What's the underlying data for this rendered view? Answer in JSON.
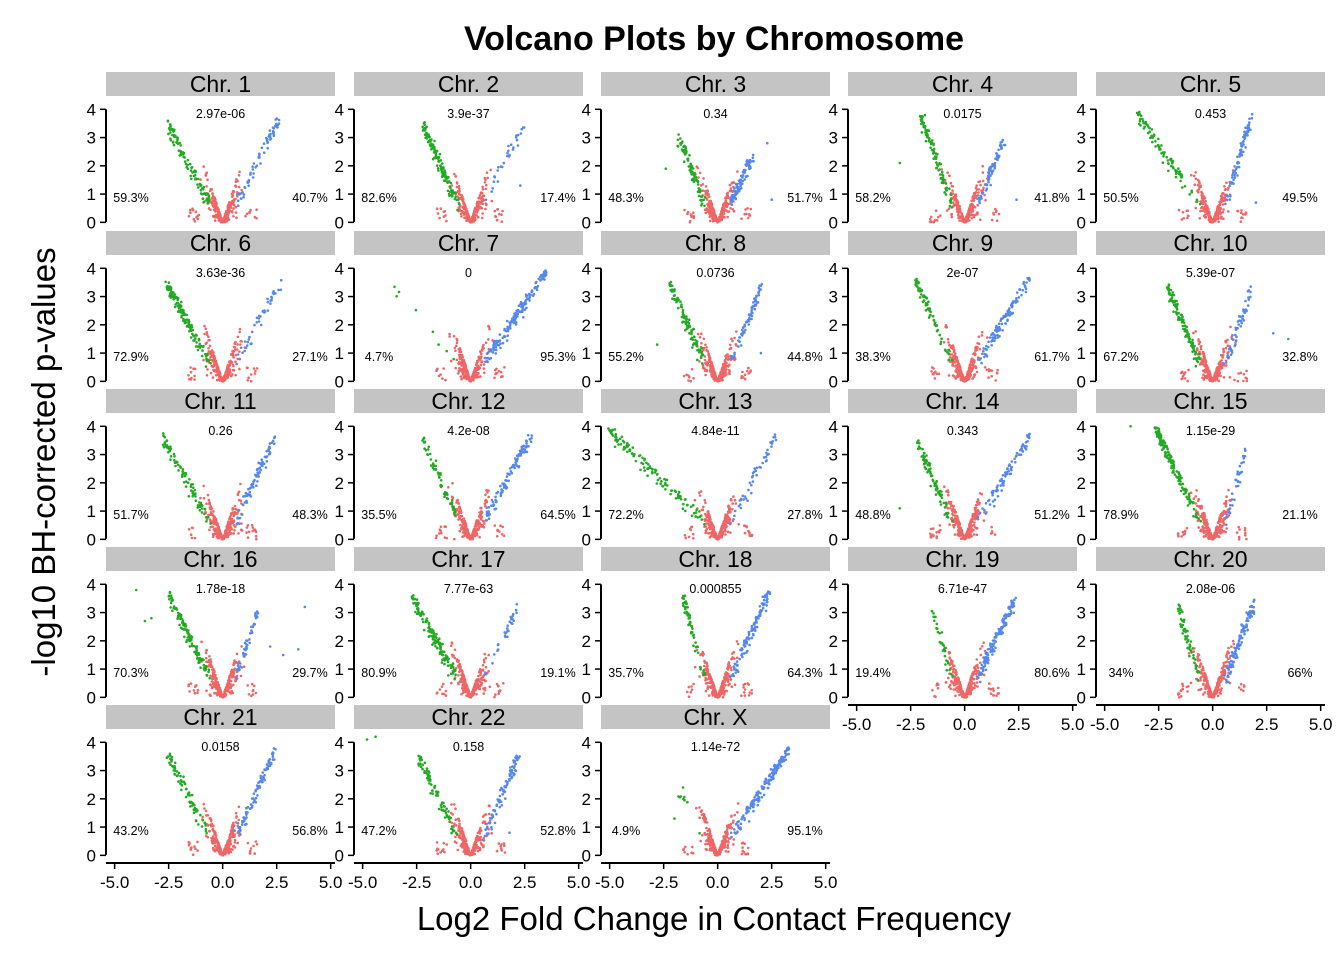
{
  "chart_data": {
    "type": "scatter",
    "title": "Volcano Plots by Chromosome",
    "xlabel": "Log2 Fold Change in Contact Frequency",
    "ylabel": "-log10 BH-corrected p-values",
    "xlim": [
      -5.4,
      5.2
    ],
    "ylim": [
      -0.2,
      4.4
    ],
    "x_ticks": [
      -5,
      -2.5,
      0,
      2.5,
      5
    ],
    "x_tick_labels": [
      "-5.0",
      "-2.5",
      "0.0",
      "2.5",
      "5.0"
    ],
    "y_ticks": [
      0,
      1,
      2,
      3,
      4
    ],
    "y_tick_labels": [
      "0",
      "1",
      "2",
      "3",
      "4"
    ],
    "grid": false,
    "legend": "none",
    "colors": {
      "down_significant": "#22aa22",
      "up_significant": "#5588ee",
      "not_significant": "#ee6666",
      "strip": "#c4c4c4"
    },
    "series": [
      {
        "color_key": "down_significant",
        "description": "negative fold change, significant"
      },
      {
        "color_key": "up_significant",
        "description": "positive fold change, significant"
      },
      {
        "color_key": "not_significant",
        "description": "not significant"
      }
    ],
    "facets": [
      {
        "label": "Chr. 1",
        "pvalue": "2.97e-06",
        "left_pct": "59.3%",
        "right_pct": "40.7%",
        "min_x": -2.6,
        "max_x": 2.6,
        "peak_left": 3.7,
        "peak_right": 3.8,
        "outliers_left": [],
        "outliers_right": []
      },
      {
        "label": "Chr. 2",
        "pvalue": "3.9e-37",
        "left_pct": "82.6%",
        "right_pct": "17.4%",
        "min_x": -2.2,
        "max_x": 2.5,
        "peak_left": 3.6,
        "peak_right": 3.7,
        "outliers_left": [],
        "outliers_right": [
          [
            2.3,
            1.3
          ]
        ]
      },
      {
        "label": "Chr. 3",
        "pvalue": "0.34",
        "left_pct": "48.3%",
        "right_pct": "51.7%",
        "min_x": -1.8,
        "max_x": 1.6,
        "peak_left": 3.2,
        "peak_right": 2.5,
        "outliers_left": [
          [
            -2.4,
            1.9
          ]
        ],
        "outliers_right": [
          [
            2.3,
            2.8
          ],
          [
            2.5,
            0.8
          ]
        ]
      },
      {
        "label": "Chr. 4",
        "pvalue": "0.0175",
        "left_pct": "58.2%",
        "right_pct": "41.8%",
        "min_x": -2.0,
        "max_x": 1.8,
        "peak_left": 3.9,
        "peak_right": 3.0,
        "outliers_left": [
          [
            -3.0,
            2.1
          ]
        ],
        "outliers_right": [
          [
            2.4,
            0.8
          ]
        ]
      },
      {
        "label": "Chr. 5",
        "pvalue": "0.453",
        "left_pct": "50.5%",
        "right_pct": "49.5%",
        "min_x": -3.5,
        "max_x": 1.8,
        "peak_left": 4.0,
        "peak_right": 3.9,
        "outliers_left": [],
        "outliers_right": [
          [
            2.0,
            0.7
          ]
        ]
      },
      {
        "label": "Chr. 6",
        "pvalue": "3.63e-36",
        "left_pct": "72.9%",
        "right_pct": "27.1%",
        "min_x": -2.6,
        "max_x": 2.7,
        "peak_left": 3.6,
        "peak_right": 3.7,
        "outliers_left": [],
        "outliers_right": []
      },
      {
        "label": "Chr. 7",
        "pvalue": "0",
        "left_pct": "4.7%",
        "right_pct": "95.3%",
        "min_x": -4.3,
        "max_x": 3.5,
        "peak_left": 4.1,
        "peak_right": 4.0,
        "outliers_left": [],
        "outliers_right": []
      },
      {
        "label": "Chr. 8",
        "pvalue": "0.0736",
        "left_pct": "55.2%",
        "right_pct": "44.8%",
        "min_x": -2.2,
        "max_x": 2.0,
        "peak_left": 3.6,
        "peak_right": 3.5,
        "outliers_left": [
          [
            -2.8,
            1.3
          ]
        ],
        "outliers_right": [
          [
            2.0,
            1.0
          ]
        ]
      },
      {
        "label": "Chr. 9",
        "pvalue": "2e-07",
        "left_pct": "38.3%",
        "right_pct": "61.7%",
        "min_x": -2.3,
        "max_x": 3.0,
        "peak_left": 3.8,
        "peak_right": 3.8,
        "outliers_left": [],
        "outliers_right": []
      },
      {
        "label": "Chr. 10",
        "pvalue": "5.39e-07",
        "left_pct": "67.2%",
        "right_pct": "32.8%",
        "min_x": -2.1,
        "max_x": 1.8,
        "peak_left": 3.5,
        "peak_right": 3.4,
        "outliers_left": [],
        "outliers_right": [
          [
            2.8,
            1.7
          ],
          [
            3.5,
            1.5
          ]
        ]
      },
      {
        "label": "Chr. 11",
        "pvalue": "0.26",
        "left_pct": "51.7%",
        "right_pct": "48.3%",
        "min_x": -2.8,
        "max_x": 2.4,
        "peak_left": 3.8,
        "peak_right": 3.7,
        "outliers_left": [],
        "outliers_right": []
      },
      {
        "label": "Chr. 12",
        "pvalue": "4.2e-08",
        "left_pct": "35.5%",
        "right_pct": "64.5%",
        "min_x": -2.2,
        "max_x": 2.8,
        "peak_left": 3.7,
        "peak_right": 3.8,
        "outliers_left": [],
        "outliers_right": []
      },
      {
        "label": "Chr. 13",
        "pvalue": "4.84e-11",
        "left_pct": "72.2%",
        "right_pct": "27.8%",
        "min_x": -5.0,
        "max_x": 2.7,
        "peak_left": 4.0,
        "peak_right": 3.8,
        "outliers_left": [],
        "outliers_right": []
      },
      {
        "label": "Chr. 14",
        "pvalue": "0.343",
        "left_pct": "48.8%",
        "right_pct": "51.2%",
        "min_x": -2.2,
        "max_x": 3.0,
        "peak_left": 3.6,
        "peak_right": 3.8,
        "outliers_left": [
          [
            -3.0,
            1.1
          ]
        ],
        "outliers_right": []
      },
      {
        "label": "Chr. 15",
        "pvalue": "1.15e-29",
        "left_pct": "78.9%",
        "right_pct": "21.1%",
        "min_x": -2.6,
        "max_x": 1.6,
        "peak_left": 4.0,
        "peak_right": 3.5,
        "outliers_left": [
          [
            -3.8,
            4.0
          ]
        ],
        "outliers_right": []
      },
      {
        "label": "Chr. 16",
        "pvalue": "1.78e-18",
        "left_pct": "70.3%",
        "right_pct": "29.7%",
        "min_x": -2.5,
        "max_x": 1.6,
        "peak_left": 3.8,
        "peak_right": 3.1,
        "outliers_left": [
          [
            -4.0,
            3.8
          ],
          [
            -3.6,
            2.7
          ],
          [
            -3.3,
            2.8
          ]
        ],
        "outliers_right": [
          [
            2.2,
            1.8
          ],
          [
            2.8,
            1.5
          ],
          [
            3.5,
            1.7
          ],
          [
            3.8,
            3.2
          ]
        ]
      },
      {
        "label": "Chr. 17",
        "pvalue": "7.77e-63",
        "left_pct": "80.9%",
        "right_pct": "19.1%",
        "min_x": -2.7,
        "max_x": 2.2,
        "peak_left": 3.7,
        "peak_right": 3.4,
        "outliers_left": [],
        "outliers_right": []
      },
      {
        "label": "Chr. 18",
        "pvalue": "0.000855",
        "left_pct": "35.7%",
        "right_pct": "64.3%",
        "min_x": -1.6,
        "max_x": 2.4,
        "peak_left": 3.7,
        "peak_right": 3.9,
        "outliers_left": [],
        "outliers_right": []
      },
      {
        "label": "Chr. 19",
        "pvalue": "6.71e-47",
        "left_pct": "19.4%",
        "right_pct": "80.6%",
        "min_x": -1.5,
        "max_x": 2.3,
        "peak_left": 3.3,
        "peak_right": 3.6,
        "outliers_left": [],
        "outliers_right": []
      },
      {
        "label": "Chr. 20",
        "pvalue": "2.08e-06",
        "left_pct": "34%",
        "right_pct": "66%",
        "min_x": -1.6,
        "max_x": 1.9,
        "peak_left": 3.4,
        "peak_right": 3.5,
        "outliers_left": [],
        "outliers_right": []
      },
      {
        "label": "Chr. 21",
        "pvalue": "0.0158",
        "left_pct": "43.2%",
        "right_pct": "56.8%",
        "min_x": -2.5,
        "max_x": 2.5,
        "peak_left": 3.7,
        "peak_right": 3.9,
        "outliers_left": [],
        "outliers_right": []
      },
      {
        "label": "Chr. 22",
        "pvalue": "0.158",
        "left_pct": "47.2%",
        "right_pct": "52.8%",
        "min_x": -2.4,
        "max_x": 2.2,
        "peak_left": 3.6,
        "peak_right": 3.6,
        "outliers_left": [
          [
            -4.8,
            4.1
          ],
          [
            -4.4,
            4.2
          ]
        ],
        "outliers_right": [
          [
            1.8,
            0.8
          ]
        ]
      },
      {
        "label": "Chr. X",
        "pvalue": "1.14e-72",
        "left_pct": "4.9%",
        "right_pct": "95.1%",
        "min_x": -1.8,
        "max_x": 3.3,
        "peak_left": 2.4,
        "peak_right": 3.9,
        "outliers_left": [
          [
            -1.6,
            2.4
          ],
          [
            -2.0,
            1.3
          ]
        ],
        "outliers_right": []
      }
    ]
  }
}
